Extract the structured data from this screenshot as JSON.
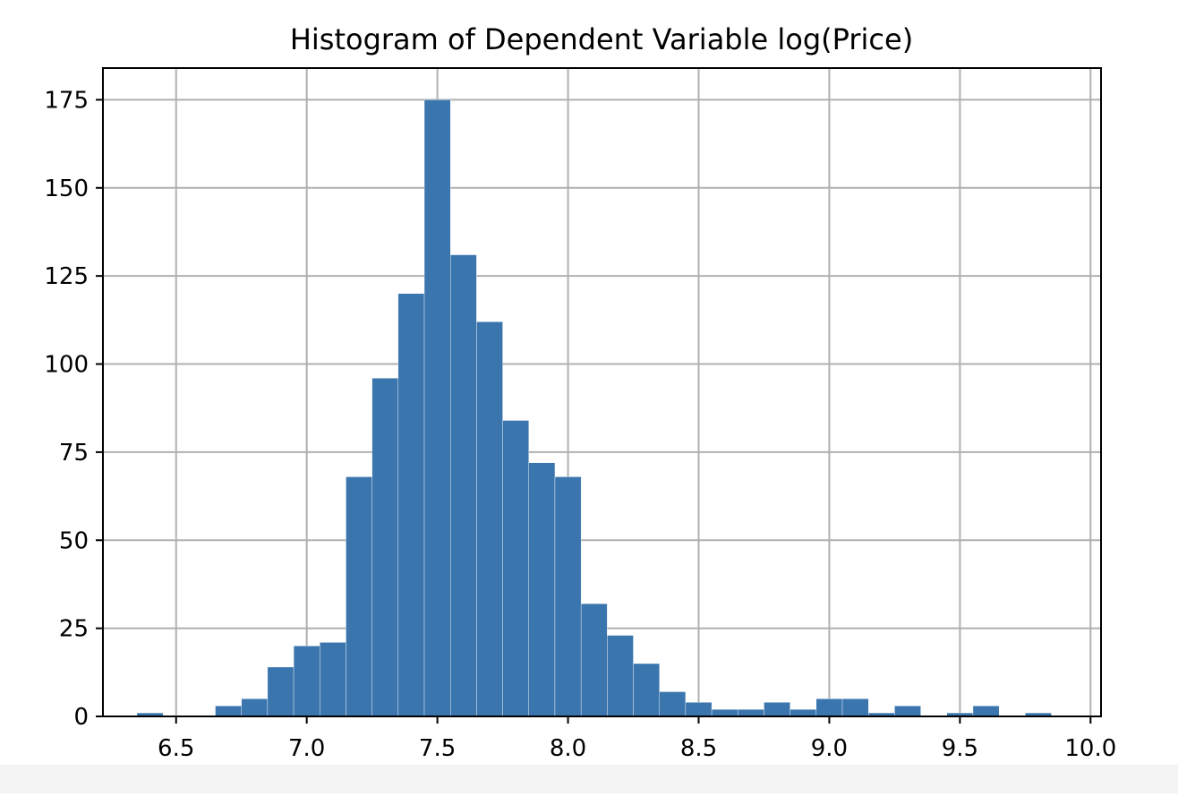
{
  "chart_data": {
    "type": "bar",
    "title": "Histogram of Dependent Variable log(Price)",
    "xlabel": "",
    "ylabel": "",
    "xlim": [
      6.22,
      10.04
    ],
    "ylim": [
      0,
      184
    ],
    "grid": true,
    "bar_color": "#3a75ae",
    "x_ticks": [
      6.5,
      7.0,
      7.5,
      8.0,
      8.5,
      9.0,
      9.5,
      10.0
    ],
    "x_tick_labels": [
      "6.5",
      "7.0",
      "7.5",
      "8.0",
      "8.5",
      "9.0",
      "9.5",
      "10.0"
    ],
    "y_ticks": [
      0,
      25,
      50,
      75,
      100,
      125,
      150,
      175
    ],
    "y_tick_labels": [
      "0",
      "25",
      "50",
      "75",
      "100",
      "125",
      "150",
      "175"
    ],
    "bin_start": 6.35,
    "bin_width": 0.1,
    "values": [
      1,
      0,
      0,
      3,
      5,
      14,
      20,
      21,
      68,
      96,
      120,
      175,
      131,
      112,
      84,
      72,
      68,
      32,
      23,
      15,
      7,
      4,
      2,
      2,
      4,
      2,
      5,
      5,
      1,
      3,
      0,
      1,
      3,
      0,
      1
    ]
  }
}
